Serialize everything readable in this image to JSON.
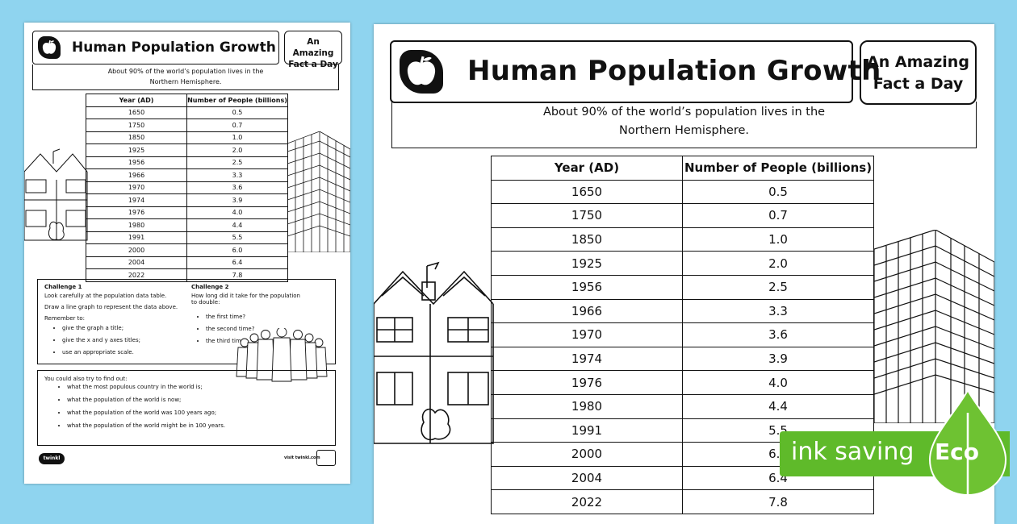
{
  "worksheet": {
    "title": "Human Population Growth",
    "badge_line1": "An Amazing",
    "badge_line2": "Fact a Day",
    "intro_line1": "About 90% of the world’s population lives in the",
    "intro_line2": "Northern Hemisphere.",
    "table": {
      "headers": [
        "Year (AD)",
        "Number of People (billions)"
      ],
      "rows": [
        [
          "1650",
          "0.5"
        ],
        [
          "1750",
          "0.7"
        ],
        [
          "1850",
          "1.0"
        ],
        [
          "1925",
          "2.0"
        ],
        [
          "1956",
          "2.5"
        ],
        [
          "1966",
          "3.3"
        ],
        [
          "1970",
          "3.6"
        ],
        [
          "1974",
          "3.9"
        ],
        [
          "1976",
          "4.0"
        ],
        [
          "1980",
          "4.4"
        ],
        [
          "1991",
          "5.5"
        ],
        [
          "2000",
          "6.0"
        ],
        [
          "2004",
          "6.4"
        ],
        [
          "2022",
          "7.8"
        ]
      ]
    },
    "challenge1": {
      "title": "Challenge 1",
      "line1": "Look carefully at the population data table.",
      "line2": "Draw a line graph to represent the data above.",
      "line3": "Remember to:",
      "items": [
        "give the graph a title;",
        "give the x and y axes titles;",
        "use an appropriate scale."
      ]
    },
    "challenge2": {
      "title": "Challenge 2",
      "line1": "How long did it take for the population",
      "line2": "to double:",
      "items": [
        "the first time?",
        "the second time?",
        "the third time?"
      ]
    },
    "extra": {
      "title": "You could also try to find out:",
      "items": [
        "what the most populous country in the world is;",
        "what the population of the world is now;",
        "what the population of the world was 100 years ago;",
        "what the population of the world might be in 100 years."
      ]
    },
    "footer_logo": "twinkl",
    "footer_visit": "visit twinkl.com"
  },
  "eco_badge": {
    "text": "ink saving",
    "word": "Eco",
    "color": "#5fba2a"
  }
}
